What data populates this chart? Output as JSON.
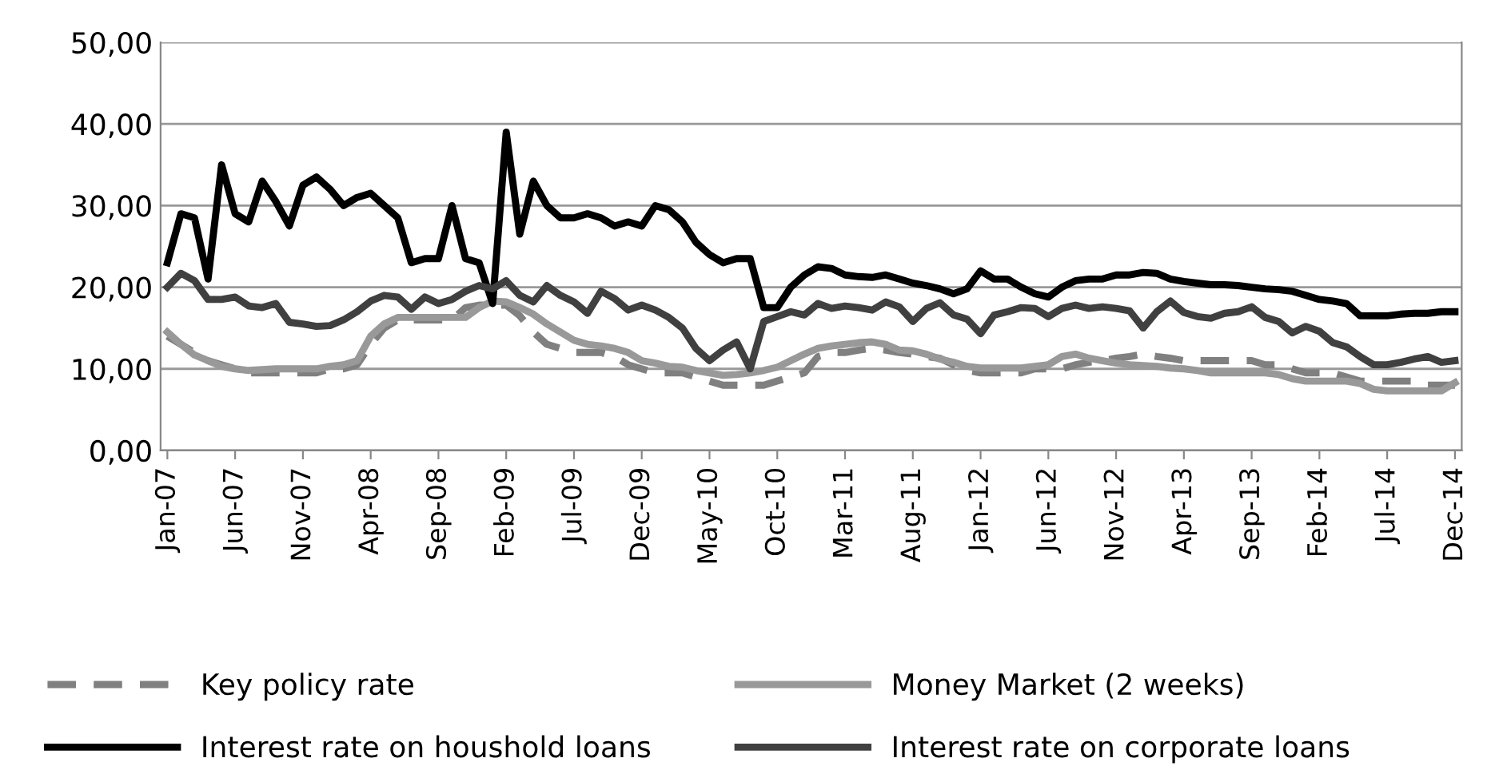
{
  "chart_data": {
    "type": "line",
    "categories": [
      "Jan-07",
      null,
      null,
      null,
      null,
      "Jun-07",
      null,
      null,
      null,
      null,
      "Nov-07",
      null,
      null,
      null,
      null,
      "Apr-08",
      null,
      null,
      null,
      null,
      "Sep-08",
      null,
      null,
      null,
      null,
      "Feb-09",
      null,
      null,
      null,
      null,
      "Jul-09",
      null,
      null,
      null,
      null,
      "Dec-09",
      null,
      null,
      null,
      null,
      "May-10",
      null,
      null,
      null,
      null,
      "Oct-10",
      null,
      null,
      null,
      null,
      "Mar-11",
      null,
      null,
      null,
      null,
      "Aug-11",
      null,
      null,
      null,
      null,
      "Jan-12",
      null,
      null,
      null,
      null,
      "Jun-12",
      null,
      null,
      null,
      null,
      "Nov-12",
      null,
      null,
      null,
      null,
      "Apr-13",
      null,
      null,
      null,
      null,
      "Sep-13",
      null,
      null,
      null,
      null,
      "Feb-14",
      null,
      null,
      null,
      null,
      "Jul-14",
      null,
      null,
      null,
      null,
      "Dec-14"
    ],
    "series": [
      {
        "name": "Key policy rate",
        "color": "#808080",
        "line_style": "dashed",
        "values": [
          14,
          13,
          12,
          11,
          10.5,
          10,
          9.5,
          9.5,
          9.5,
          9.5,
          9.5,
          9.5,
          10,
          10,
          10.5,
          13,
          15,
          16,
          16,
          16,
          16,
          16,
          17.5,
          17.8,
          17.8,
          17.8,
          16.5,
          14.5,
          13,
          12.5,
          12,
          12,
          12,
          11.5,
          10.5,
          10,
          9.5,
          9.5,
          9.5,
          9,
          8.5,
          8,
          8,
          8,
          8,
          8.5,
          9,
          9.5,
          11.5,
          12,
          12,
          12.3,
          12.5,
          12.3,
          12,
          11.8,
          11.5,
          11.3,
          10.5,
          9.8,
          9.5,
          9.5,
          9.5,
          9.5,
          10,
          10,
          10,
          10.5,
          10.8,
          11,
          11.3,
          11.5,
          11.8,
          11.5,
          11.3,
          11,
          11,
          11,
          11,
          11,
          11,
          10.5,
          10.5,
          10,
          9.5,
          9.5,
          9.5,
          9,
          8.5,
          8.5,
          8.5,
          8.5,
          8.5,
          8,
          8,
          8
        ]
      },
      {
        "name": "Money Market (2 weeks)",
        "color": "#999999",
        "line_style": "solid",
        "values": [
          14.5,
          13,
          11.7,
          11,
          10.3,
          10,
          9.8,
          9.9,
          10,
          10,
          10,
          10,
          10.3,
          10.5,
          11,
          14,
          15.5,
          16.3,
          16.3,
          16.3,
          16.3,
          16.3,
          16.3,
          17.5,
          18.3,
          18.2,
          17.5,
          16.7,
          15.5,
          14.5,
          13.5,
          13,
          12.8,
          12.5,
          12,
          11,
          10.7,
          10.3,
          10.2,
          9.8,
          9.5,
          9.2,
          9.3,
          9.5,
          9.8,
          10.2,
          11,
          11.8,
          12.5,
          12.8,
          13,
          13.2,
          13.3,
          13,
          12.3,
          12.2,
          11.8,
          11.2,
          10.8,
          10.3,
          10.1,
          10.1,
          10.1,
          10.1,
          10.3,
          10.5,
          11.5,
          11.8,
          11.3,
          11,
          10.7,
          10.5,
          10.4,
          10.3,
          10.1,
          10,
          9.8,
          9.5,
          9.5,
          9.5,
          9.5,
          9.5,
          9.3,
          8.8,
          8.5,
          8.5,
          8.5,
          8.5,
          8.2,
          7.5,
          7.3,
          7.3,
          7.3,
          7.3,
          7.3,
          8.3
        ]
      },
      {
        "name": "Interest rate on houshold loans",
        "color": "#000000",
        "line_style": "solid",
        "values": [
          23,
          29,
          28.5,
          21,
          35,
          29,
          28,
          33,
          30.5,
          27.5,
          32.5,
          33.5,
          32,
          30,
          31,
          31.5,
          30,
          28.5,
          23,
          23.5,
          23.5,
          30,
          23.5,
          23,
          18,
          39,
          26.5,
          33,
          30,
          28.5,
          28.5,
          29,
          28.5,
          27.5,
          28,
          27.5,
          30,
          29.5,
          28,
          25.5,
          24,
          23,
          23.5,
          23.5,
          17.5,
          17.5,
          20,
          21.5,
          22.5,
          22.3,
          21.5,
          21.3,
          21.2,
          21.5,
          21,
          20.5,
          20.2,
          19.8,
          19.2,
          19.8,
          22,
          21,
          21,
          20,
          19.2,
          18.8,
          20,
          20.8,
          21,
          21,
          21.5,
          21.5,
          21.8,
          21.7,
          21,
          20.7,
          20.5,
          20.3,
          20.3,
          20.2,
          20,
          19.8,
          19.7,
          19.5,
          19,
          18.5,
          18.3,
          18,
          16.5,
          16.5,
          16.5,
          16.7,
          16.8,
          16.8,
          17,
          17
        ]
      },
      {
        "name": "Interest rate on corporate loans",
        "color": "#404040",
        "line_style": "solid",
        "values": [
          20,
          21.7,
          20.8,
          18.5,
          18.5,
          18.8,
          17.7,
          17.5,
          18,
          15.7,
          15.5,
          15.2,
          15.3,
          16,
          17,
          18.3,
          19,
          18.8,
          17.3,
          18.8,
          18,
          18.5,
          19.5,
          20.2,
          19.8,
          20.8,
          19,
          18.2,
          20.2,
          19,
          18.2,
          16.8,
          19.5,
          18.6,
          17.2,
          17.8,
          17.2,
          16.3,
          15,
          12.5,
          11,
          12.3,
          13.3,
          10,
          15.8,
          16.4,
          17,
          16.6,
          18,
          17.4,
          17.7,
          17.5,
          17.2,
          18.2,
          17.6,
          15.8,
          17.4,
          18.1,
          16.6,
          16.1,
          14.3,
          16.6,
          17,
          17.5,
          17.4,
          16.4,
          17.4,
          17.8,
          17.4,
          17.6,
          17.4,
          17.1,
          15,
          17,
          18.3,
          16.9,
          16.4,
          16.2,
          16.8,
          17,
          17.6,
          16.3,
          15.8,
          14.4,
          15.2,
          14.6,
          13.2,
          12.7,
          11.5,
          10.5,
          10.5,
          10.8,
          11.2,
          11.5,
          10.8,
          11
        ]
      }
    ],
    "ylim": [
      0,
      50
    ],
    "yticks": [
      {
        "value": 0,
        "label": "0,00"
      },
      {
        "value": 10,
        "label": "10,00"
      },
      {
        "value": 20,
        "label": "20,00"
      },
      {
        "value": 30,
        "label": "30,00"
      },
      {
        "value": 40,
        "label": "40,00"
      },
      {
        "value": 50,
        "label": "50,00"
      }
    ],
    "grid": "y",
    "legend": "bottom",
    "marker": "none"
  }
}
